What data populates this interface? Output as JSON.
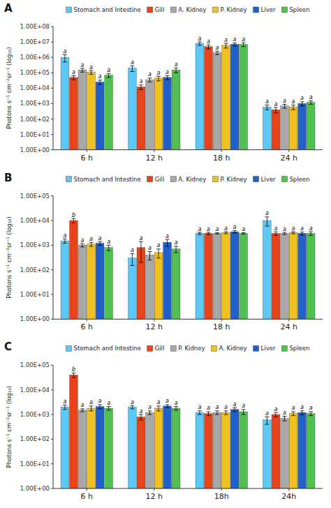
{
  "chart_data": [
    {
      "type": "bar",
      "title": "A",
      "y_label": "Photons s⁻¹ cm⁻²sr⁻¹ (log₁₀)",
      "categories": [
        "6 h",
        "12 h",
        "18 h",
        "24 h"
      ],
      "log": "y",
      "grid": false,
      "legend": "top",
      "ylim": [
        1,
        100000000
      ],
      "yticks": [
        {
          "value": 1,
          "label": "1.00E+00"
        },
        {
          "value": 10,
          "label": "1.00E+01"
        },
        {
          "value": 100,
          "label": "1.00E+02"
        },
        {
          "value": 1000,
          "label": "1.00E+03"
        },
        {
          "value": 10000,
          "label": "1.00E+04"
        },
        {
          "value": 100000,
          "label": "1.00E+05"
        },
        {
          "value": 1000000,
          "label": "1.00E+06"
        },
        {
          "value": 10000000,
          "label": "1.00E+07"
        },
        {
          "value": 100000000,
          "label": "1.00E+08"
        }
      ],
      "series": [
        {
          "name": "Stomach and Intestine",
          "color": "#5BC8F5",
          "values": [
            1000000,
            200000,
            8000000,
            600
          ],
          "errors": [
            500000,
            80000,
            2000000,
            200
          ],
          "stat_labels": [
            "a",
            "a",
            "a",
            "a"
          ]
        },
        {
          "name": "Gill",
          "color": "#E8431A",
          "values": [
            50000,
            12000,
            5000000,
            400
          ],
          "errors": [
            15000,
            4000,
            1500000,
            150
          ],
          "stat_labels": [
            "a",
            "a",
            "a",
            "a"
          ]
        },
        {
          "name": "A. Kidney",
          "color": "#A8A8A8",
          "values": [
            150000,
            35000,
            2000000,
            700
          ],
          "errors": [
            40000,
            10000,
            500000,
            200
          ],
          "stat_labels": [
            "a",
            "a",
            "a",
            "a"
          ]
        },
        {
          "name": "P. Kidney",
          "color": "#F0C020",
          "values": [
            110000,
            45000,
            6000000,
            600
          ],
          "errors": [
            30000,
            15000,
            2000000,
            200
          ],
          "stat_labels": [
            "a",
            "a",
            "a",
            "a"
          ]
        },
        {
          "name": "Liver",
          "color": "#2060C8",
          "values": [
            25000,
            50000,
            7000000,
            1000
          ],
          "errors": [
            8000,
            15000,
            1500000,
            300
          ],
          "stat_labels": [
            "a",
            "a",
            "a",
            "a"
          ]
        },
        {
          "name": "Spleen",
          "color": "#50C050",
          "values": [
            70000,
            150000,
            7000000,
            1200
          ],
          "errors": [
            20000,
            50000,
            2000000,
            300
          ],
          "stat_labels": [
            "a",
            "a",
            "a",
            "a"
          ]
        }
      ]
    },
    {
      "type": "bar",
      "title": "B",
      "y_label": "Photons s⁻¹ cm⁻²sr⁻¹ (log₁₀)",
      "categories": [
        "6 h",
        "12 h",
        "18 h",
        "24 h"
      ],
      "log": "y",
      "grid": false,
      "legend": "top",
      "ylim": [
        1,
        100000
      ],
      "yticks": [
        {
          "value": 1,
          "label": "1.00E+00"
        },
        {
          "value": 10,
          "label": "1.00E+01"
        },
        {
          "value": 100,
          "label": "1.00E+02"
        },
        {
          "value": 1000,
          "label": "1.00E+03"
        },
        {
          "value": 10000,
          "label": "1.00E+04"
        },
        {
          "value": 100000,
          "label": "1.00E+05"
        }
      ],
      "series": [
        {
          "name": "Stomach and Intestine",
          "color": "#5BC8F5",
          "values": [
            1500,
            300,
            3000,
            10000
          ],
          "errors": [
            300,
            150,
            300,
            4000
          ],
          "stat_labels": [
            "a",
            "a",
            "a",
            "a"
          ]
        },
        {
          "name": "Gill",
          "color": "#E8431A",
          "values": [
            10000,
            800,
            3000,
            3000
          ],
          "errors": [
            2000,
            600,
            300,
            500
          ],
          "stat_labels": [
            "b",
            "a",
            "a",
            "a"
          ]
        },
        {
          "name": "A. Kidney",
          "color": "#A8A8A8",
          "values": [
            1000,
            400,
            3000,
            3000
          ],
          "errors": [
            150,
            150,
            200,
            300
          ],
          "stat_labels": [
            "a",
            "a",
            "a",
            "a"
          ]
        },
        {
          "name": "P. Kidney",
          "color": "#F0C020",
          "values": [
            1100,
            500,
            3200,
            3200
          ],
          "errors": [
            200,
            200,
            300,
            300
          ],
          "stat_labels": [
            "a",
            "a",
            "a",
            "a"
          ]
        },
        {
          "name": "Liver",
          "color": "#2060C8",
          "values": [
            1200,
            1300,
            3500,
            3000
          ],
          "errors": [
            200,
            400,
            400,
            400
          ],
          "stat_labels": [
            "a",
            "a",
            "a",
            "a"
          ]
        },
        {
          "name": "Spleen",
          "color": "#50C050",
          "values": [
            800,
            700,
            3000,
            3000
          ],
          "errors": [
            200,
            200,
            200,
            500
          ],
          "stat_labels": [
            "a",
            "a",
            "a",
            "a"
          ]
        }
      ]
    },
    {
      "type": "bar",
      "title": "C",
      "y_label": "Photons s⁻¹ cm⁻²sr⁻¹ (log₁₀)",
      "categories": [
        "6 h",
        "12 h",
        "18h",
        "24h"
      ],
      "log": "y",
      "grid": false,
      "legend": "top",
      "ylim": [
        1,
        100000
      ],
      "yticks": [
        {
          "value": 1,
          "label": "1.00E+00"
        },
        {
          "value": 10,
          "label": "1.00E+01"
        },
        {
          "value": 100,
          "label": "1.00E+02"
        },
        {
          "value": 1000,
          "label": "1.00E+03"
        },
        {
          "value": 10000,
          "label": "1.00E+04"
        },
        {
          "value": 100000,
          "label": "1.00E+05"
        }
      ],
      "series": [
        {
          "name": "Stomach and Intestine",
          "color": "#5BC8F5",
          "values": [
            2000,
            2000,
            1200,
            600
          ],
          "errors": [
            400,
            300,
            200,
            200
          ],
          "stat_labels": [
            "a",
            "a",
            "a",
            "a"
          ]
        },
        {
          "name": "Gill",
          "color": "#E8431A",
          "values": [
            40000,
            800,
            1100,
            1000
          ],
          "errors": [
            8000,
            200,
            200,
            200
          ],
          "stat_labels": [
            "b",
            "a",
            "a",
            "a"
          ]
        },
        {
          "name": "P. Kidney",
          "color": "#A8A8A8",
          "values": [
            1500,
            1200,
            1200,
            700
          ],
          "errors": [
            200,
            200,
            200,
            150
          ],
          "stat_labels": [
            "a",
            "a",
            "a",
            "a"
          ]
        },
        {
          "name": "A. Kidney",
          "color": "#F0C020",
          "values": [
            1800,
            1800,
            1200,
            1100
          ],
          "errors": [
            400,
            400,
            200,
            200
          ],
          "stat_labels": [
            "a",
            "a",
            "a",
            "a"
          ]
        },
        {
          "name": "Liver",
          "color": "#2060C8",
          "values": [
            2100,
            2200,
            1600,
            1200
          ],
          "errors": [
            400,
            300,
            300,
            200
          ],
          "stat_labels": [
            "a",
            "a",
            "a",
            "a"
          ]
        },
        {
          "name": "Spleen",
          "color": "#50C050",
          "values": [
            1800,
            1800,
            1300,
            1100
          ],
          "errors": [
            300,
            300,
            300,
            200
          ],
          "stat_labels": [
            "a",
            "a",
            "a",
            "a"
          ]
        }
      ]
    }
  ]
}
